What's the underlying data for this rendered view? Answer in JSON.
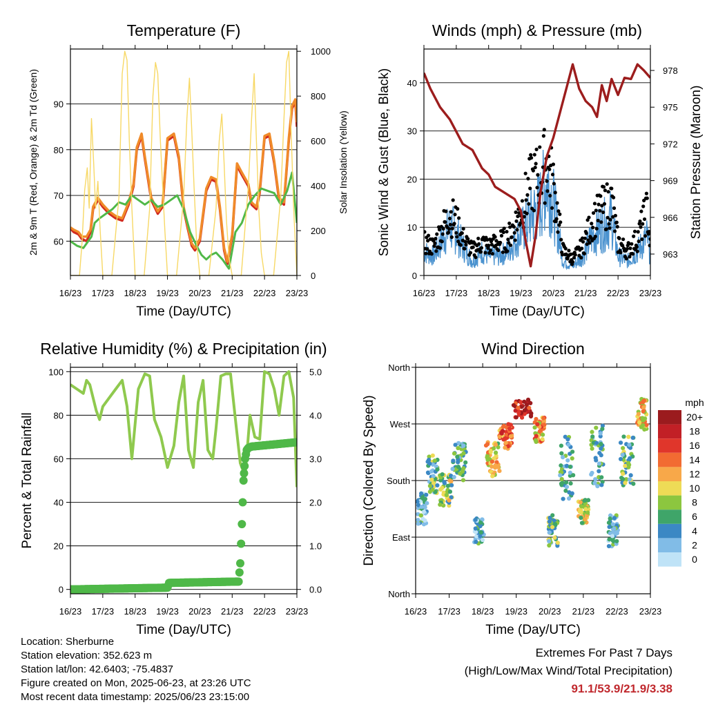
{
  "colors": {
    "temp_2m": "#d22a1e",
    "temp_9m": "#f08b2a",
    "dewpoint": "#4fb848",
    "solar": "#f7d865",
    "wind": "#4a92cf",
    "gust": "#000000",
    "pressure": "#9c1d1d",
    "humidity": "#8fc94e",
    "precip": "#4fb848",
    "extremes": "#c0282d"
  },
  "chart_data": [
    {
      "id": "temperature",
      "type": "line",
      "title": "Temperature (F)",
      "xlabel": "Time (Day/UTC)",
      "ylabel": "2m & 9m T (Red, Orange) & 2m Td (Green)",
      "y2label": "Solar Insolation (Yellow)",
      "x_ticks": [
        "16/23",
        "17/23",
        "18/23",
        "19/23",
        "20/23",
        "21/23",
        "22/23",
        "23/23"
      ],
      "xlim": [
        0,
        7
      ],
      "ylim": [
        52.5,
        102
      ],
      "y_ticks": [
        60,
        70,
        80,
        90
      ],
      "y2lim": [
        0,
        1010
      ],
      "y2_ticks": [
        0,
        200,
        400,
        600,
        800,
        1000
      ],
      "grid": "horizontal",
      "series": [
        {
          "role": "temp_2m",
          "x": [
            0,
            0.1,
            0.25,
            0.35,
            0.5,
            0.62,
            0.7,
            0.85,
            1,
            1.2,
            1.4,
            1.6,
            1.8,
            1.95,
            2.05,
            2.2,
            2.3,
            2.5,
            2.7,
            2.85,
            3,
            3.2,
            3.35,
            3.5,
            3.62,
            3.75,
            3.85,
            4,
            4.2,
            4.35,
            4.5,
            4.62,
            4.75,
            4.85,
            5,
            5.15,
            5.3,
            5.5,
            5.6,
            5.75,
            5.85,
            6,
            6.15,
            6.3,
            6.45,
            6.6,
            6.75,
            6.85,
            6.95,
            7
          ],
          "y": [
            62.8,
            62,
            61.5,
            60.5,
            60,
            62,
            67,
            69,
            67.5,
            66,
            65,
            64.5,
            68,
            72,
            80,
            83,
            78,
            69,
            66,
            67.5,
            82,
            83,
            78,
            67,
            63,
            59,
            58,
            60,
            71,
            73.5,
            73,
            67,
            58,
            55,
            61,
            76.5,
            74.5,
            72,
            68,
            67,
            70.5,
            82.5,
            83,
            77,
            69,
            68,
            82,
            89,
            90.5,
            85
          ]
        },
        {
          "role": "temp_9m",
          "x": [
            0,
            0.1,
            0.25,
            0.35,
            0.5,
            0.62,
            0.7,
            0.85,
            1,
            1.2,
            1.4,
            1.6,
            1.8,
            1.95,
            2.05,
            2.2,
            2.3,
            2.5,
            2.7,
            2.85,
            3,
            3.2,
            3.35,
            3.5,
            3.62,
            3.75,
            3.85,
            4,
            4.2,
            4.35,
            4.5,
            4.62,
            4.75,
            4.85,
            5,
            5.15,
            5.3,
            5.5,
            5.6,
            5.75,
            5.85,
            6,
            6.15,
            6.3,
            6.45,
            6.6,
            6.75,
            6.85,
            6.95,
            7
          ],
          "y": [
            63,
            62.5,
            62,
            61,
            61,
            62.5,
            67.5,
            69.5,
            68,
            66.5,
            65.5,
            65,
            68.5,
            72.5,
            80.5,
            83.5,
            78.5,
            69.5,
            66.5,
            68,
            82.5,
            83.5,
            78.5,
            67.5,
            63.5,
            59.5,
            58.5,
            60.5,
            71.5,
            74,
            73.5,
            67.5,
            58.5,
            55.5,
            61.5,
            77,
            75,
            72.5,
            68.5,
            67.5,
            71,
            83,
            83.5,
            77.5,
            69.5,
            68.5,
            82.5,
            89.5,
            91,
            86
          ]
        },
        {
          "role": "dewpoint",
          "x": [
            0,
            0.2,
            0.4,
            0.55,
            0.65,
            0.75,
            0.9,
            1.1,
            1.3,
            1.5,
            1.7,
            1.9,
            2.1,
            2.3,
            2.5,
            2.7,
            2.9,
            3.1,
            3.3,
            3.5,
            3.7,
            3.9,
            4.05,
            4.2,
            4.35,
            4.5,
            4.7,
            4.9,
            5.1,
            5.3,
            5.5,
            5.7,
            5.9,
            6.1,
            6.3,
            6.5,
            6.7,
            6.85,
            7
          ],
          "y": [
            60,
            59,
            58.5,
            60,
            61,
            64,
            65,
            66,
            67,
            68.5,
            68,
            70,
            69,
            68,
            69,
            67.5,
            68,
            69,
            70,
            67,
            62,
            59,
            57,
            56,
            57,
            57.5,
            56,
            54,
            62,
            64,
            68,
            70,
            71.5,
            71,
            70.5,
            68,
            71,
            75,
            64
          ]
        },
        {
          "role": "solar",
          "x": [
            0,
            0.28,
            0.36,
            0.44,
            0.52,
            0.58,
            0.65,
            0.72,
            0.78,
            0.85,
            0.92,
            1.0,
            1.28,
            1.5,
            1.6,
            1.68,
            1.75,
            1.82,
            1.9,
            2.0,
            2.28,
            2.45,
            2.55,
            2.63,
            2.7,
            2.78,
            2.85,
            2.92,
            3.0,
            3.28,
            3.5,
            3.6,
            3.68,
            3.75,
            3.82,
            3.9,
            4.0,
            4.28,
            4.5,
            4.6,
            4.68,
            4.75,
            4.82,
            4.9,
            5.0,
            5.28,
            5.5,
            5.6,
            5.68,
            5.75,
            5.82,
            5.9,
            6.0,
            6.28,
            6.5,
            6.6,
            6.68,
            6.75,
            6.82,
            6.9,
            7.0
          ],
          "y": [
            0,
            0,
            150,
            380,
            480,
            300,
            700,
            500,
            300,
            420,
            200,
            0,
            0,
            350,
            900,
            1000,
            960,
            600,
            300,
            0,
            0,
            300,
            800,
            950,
            900,
            600,
            400,
            200,
            0,
            0,
            350,
            700,
            880,
            650,
            400,
            150,
            0,
            0,
            300,
            600,
            720,
            500,
            250,
            80,
            0,
            0,
            400,
            700,
            900,
            600,
            300,
            100,
            0,
            0,
            350,
            700,
            950,
            1000,
            650,
            300,
            0
          ]
        },
        {
          "role": "precip_unused",
          "x": [],
          "y": []
        }
      ]
    },
    {
      "id": "winds",
      "type": "line",
      "title": "Winds (mph) & Pressure (mb)",
      "xlabel": "Time (Day/UTC)",
      "ylabel": "Sonic Wind & Gust (Blue, Black)",
      "y2label": "Station Pressure (Maroon)",
      "x_ticks": [
        "16/23",
        "17/23",
        "18/23",
        "19/23",
        "20/23",
        "21/23",
        "22/23",
        "23/23"
      ],
      "xlim": [
        0,
        7
      ],
      "ylim": [
        0,
        47
      ],
      "y_ticks": [
        0,
        10,
        20,
        30,
        40
      ],
      "y2lim": [
        961.25,
        979.75
      ],
      "y2_ticks": [
        963,
        966,
        969,
        972,
        975,
        978
      ],
      "grid": "horizontal",
      "series": [
        {
          "role": "wind",
          "x": [
            0,
            0.3,
            0.6,
            0.8,
            1.0,
            1.2,
            1.5,
            1.8,
            2.0,
            2.3,
            2.6,
            2.9,
            3.1,
            3.3,
            3.6,
            3.8,
            4.0,
            4.3,
            4.6,
            4.9,
            5.2,
            5.5,
            5.8,
            6.0,
            6.3,
            6.6,
            6.9,
            7.0
          ],
          "y": [
            5,
            4,
            8,
            10,
            9,
            6,
            3,
            5,
            4,
            4,
            5,
            8,
            10,
            12,
            15,
            20,
            15,
            3,
            2,
            4,
            8,
            10,
            12,
            4,
            3,
            5,
            8,
            4
          ]
        },
        {
          "role": "gust",
          "x": [
            0,
            0.3,
            0.6,
            0.8,
            1.0,
            1.2,
            1.5,
            1.8,
            2.0,
            2.3,
            2.6,
            2.9,
            3.1,
            3.3,
            3.6,
            3.8,
            4.0,
            4.3,
            4.6,
            4.9,
            5.2,
            5.5,
            5.8,
            6.0,
            6.3,
            6.6,
            6.9,
            7.0
          ],
          "y": [
            8,
            7,
            12,
            15,
            13,
            9,
            6,
            8,
            7,
            8,
            9,
            14,
            18,
            22,
            25,
            28,
            22,
            6,
            4,
            7,
            13,
            16,
            18,
            8,
            6,
            9,
            16,
            7
          ]
        },
        {
          "role": "pressure",
          "x": [
            0,
            0.2,
            0.5,
            0.8,
            1.0,
            1.2,
            1.5,
            1.8,
            2.0,
            2.2,
            2.5,
            2.8,
            3.0,
            3.15,
            3.3,
            3.45,
            3.6,
            3.8,
            4.0,
            4.2,
            4.4,
            4.6,
            4.8,
            5.0,
            5.2,
            5.35,
            5.5,
            5.65,
            5.8,
            6.0,
            6.2,
            6.4,
            6.6,
            6.8,
            7.0
          ],
          "y": [
            977.8,
            976.5,
            975,
            974,
            973,
            972,
            971.5,
            970,
            969.5,
            968.5,
            968,
            967.5,
            966.5,
            964,
            962,
            964.5,
            968,
            971,
            972.5,
            974.5,
            976.5,
            978.5,
            976.5,
            975.5,
            975,
            974.2,
            976.8,
            975.5,
            977.3,
            976,
            977.4,
            977.3,
            978.5,
            978,
            977.4
          ]
        }
      ]
    },
    {
      "id": "humidity",
      "type": "line",
      "title": "Relative Humidity (%) & Precipitation (in)",
      "xlabel": "Time (Day/UTC)",
      "ylabel": "Percent & Total Rainfall",
      "x_ticks": [
        "16/23",
        "17/23",
        "18/23",
        "19/23",
        "20/23",
        "21/23",
        "22/23",
        "23/23"
      ],
      "xlim": [
        0,
        7
      ],
      "ylim": [
        -2,
        102
      ],
      "y_ticks": [
        0,
        20,
        40,
        60,
        80,
        100
      ],
      "y2lim": [
        -0.1,
        5.1
      ],
      "y2_ticks": [
        "0.0",
        "1.0",
        "2.0",
        "3.0",
        "4.0",
        "5.0"
      ],
      "grid": "horizontal",
      "series": [
        {
          "role": "humidity",
          "x": [
            0,
            0.2,
            0.4,
            0.5,
            0.6,
            0.8,
            0.9,
            1.0,
            1.2,
            1.4,
            1.6,
            1.75,
            1.9,
            2.1,
            2.3,
            2.45,
            2.6,
            2.8,
            3.0,
            3.2,
            3.35,
            3.5,
            3.65,
            3.8,
            3.95,
            4.1,
            4.25,
            4.4,
            4.5,
            4.65,
            4.8,
            4.95,
            5.1,
            5.25,
            5.4,
            5.55,
            5.7,
            5.85,
            6.0,
            6.15,
            6.3,
            6.45,
            6.6,
            6.75,
            6.9,
            7.0
          ],
          "y": [
            94,
            92,
            90,
            96,
            94,
            82,
            78,
            84,
            88,
            92,
            96,
            84,
            60,
            92,
            99,
            98,
            78,
            70,
            56,
            66,
            86,
            98,
            64,
            56,
            86,
            96,
            64,
            60,
            74,
            98,
            99,
            99,
            78,
            58,
            52,
            80,
            70,
            69,
            100,
            99,
            92,
            80,
            98,
            100,
            88,
            47
          ]
        },
        {
          "role": "precip",
          "x": [
            0,
            1.5,
            3.0,
            3.05,
            5.2,
            5.25,
            5.3,
            5.35,
            5.4,
            5.45,
            5.5,
            5.6,
            7.0
          ],
          "y": [
            0,
            0.02,
            0.04,
            0.15,
            0.18,
            0.6,
            1.5,
            2.5,
            3.0,
            3.2,
            3.25,
            3.28,
            3.38
          ]
        }
      ]
    },
    {
      "id": "wind_direction",
      "type": "scatter",
      "title": "Wind Direction",
      "xlabel": "Time (Day/UTC)",
      "ylabel": "Direction (Colored By Speed)",
      "x_ticks": [
        "16/23",
        "17/23",
        "18/23",
        "19/23",
        "20/23",
        "21/23",
        "22/23",
        "23/23"
      ],
      "xlim": [
        0,
        7
      ],
      "ylim": [
        0,
        360
      ],
      "y_ticks": [
        "North",
        "East",
        "South",
        "West",
        "North"
      ],
      "grid": "horizontal",
      "legend": {
        "title": "mph",
        "labels": [
          "20+",
          "18",
          "16",
          "14",
          "12",
          "10",
          "8",
          "6",
          "4",
          "2",
          "0"
        ],
        "colors": [
          "#9b1b1e",
          "#c22026",
          "#e0362b",
          "#f26b32",
          "#f8a849",
          "#eedb56",
          "#8cc63f",
          "#3fa569",
          "#3b88c4",
          "#81bce7",
          "#bfe3f7"
        ],
        "placement": "right"
      },
      "clusters": [
        {
          "x": 0.2,
          "y": 135,
          "spread_x": 0.15,
          "spread_y": 25,
          "speed": 4
        },
        {
          "x": 0.5,
          "y": 190,
          "spread_x": 0.15,
          "spread_y": 30,
          "speed": 6
        },
        {
          "x": 0.9,
          "y": 165,
          "spread_x": 0.2,
          "spread_y": 25,
          "speed": 8
        },
        {
          "x": 1.3,
          "y": 210,
          "spread_x": 0.2,
          "spread_y": 30,
          "speed": 5
        },
        {
          "x": 1.9,
          "y": 100,
          "spread_x": 0.15,
          "spread_y": 20,
          "speed": 4
        },
        {
          "x": 2.3,
          "y": 215,
          "spread_x": 0.2,
          "spread_y": 30,
          "speed": 10
        },
        {
          "x": 2.7,
          "y": 250,
          "spread_x": 0.2,
          "spread_y": 20,
          "speed": 14
        },
        {
          "x": 3.2,
          "y": 295,
          "spread_x": 0.3,
          "spread_y": 15,
          "speed": 18
        },
        {
          "x": 3.7,
          "y": 260,
          "spread_x": 0.15,
          "spread_y": 20,
          "speed": 12
        },
        {
          "x": 4.1,
          "y": 100,
          "spread_x": 0.15,
          "spread_y": 25,
          "speed": 6
        },
        {
          "x": 4.5,
          "y": 200,
          "spread_x": 0.2,
          "spread_y": 50,
          "speed": 5
        },
        {
          "x": 5.0,
          "y": 130,
          "spread_x": 0.15,
          "spread_y": 20,
          "speed": 9
        },
        {
          "x": 5.4,
          "y": 220,
          "spread_x": 0.2,
          "spread_y": 50,
          "speed": 5
        },
        {
          "x": 5.9,
          "y": 100,
          "spread_x": 0.15,
          "spread_y": 25,
          "speed": 4
        },
        {
          "x": 6.3,
          "y": 210,
          "spread_x": 0.2,
          "spread_y": 40,
          "speed": 6
        },
        {
          "x": 6.75,
          "y": 285,
          "spread_x": 0.15,
          "spread_y": 25,
          "speed": 11
        }
      ]
    }
  ],
  "info": {
    "location": "Location: Sherburne",
    "elevation": "Station elevation: 352.623 m",
    "latlon": "Station lat/lon: 42.6403; -75.4837",
    "created": "Figure created on Mon, 2025-06-23, at 23:26 UTC",
    "recent": "Most recent data timestamp: 2025/06/23 23:15:00"
  },
  "extremes": {
    "heading": "Extremes For Past 7 Days",
    "subheading": "(High/Low/Max Wind/Total Precipitation)",
    "values": "91.1/53.9/21.9/3.38"
  }
}
